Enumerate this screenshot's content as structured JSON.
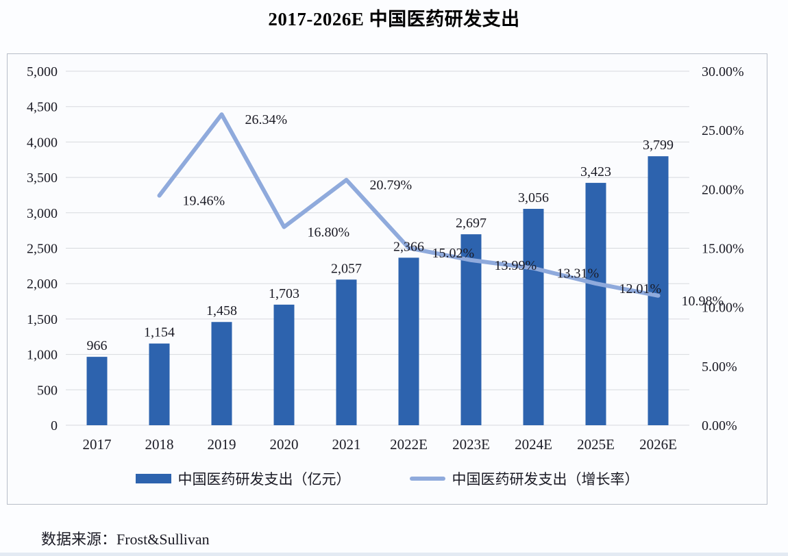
{
  "title": "2017-2026E 中国医药研发支出",
  "source": "数据来源：Frost&Sullivan",
  "legend": {
    "bar_label": "中国医药研发支出（亿元）",
    "line_label": "中国医药研发支出（增长率）"
  },
  "colors": {
    "bar": "#2d63ae",
    "line": "#8faadc",
    "grid": "#d7d9dd",
    "text": "#1a1a24",
    "frame": "#b7bdc8"
  },
  "chart_data": {
    "type": "bar",
    "subtype": "bar+line combo, dual axis",
    "title": "2017-2026E 中国医药研发支出",
    "categories": [
      "2017",
      "2018",
      "2019",
      "2020",
      "2021",
      "2022E",
      "2023E",
      "2024E",
      "2025E",
      "2026E"
    ],
    "series": [
      {
        "name": "中国医药研发支出（亿元）",
        "type": "bar",
        "axis": "left",
        "values": [
          966,
          1154,
          1458,
          1703,
          2057,
          2366,
          2697,
          3056,
          3423,
          3799
        ],
        "labels": [
          "966",
          "1,154",
          "1,458",
          "1,703",
          "2,057",
          "2,366",
          "2,697",
          "3,056",
          "3,423",
          "3,799"
        ]
      },
      {
        "name": "中国医药研发支出（增长率）",
        "type": "line",
        "axis": "right",
        "values": [
          null,
          19.46,
          26.34,
          16.8,
          20.79,
          15.02,
          13.99,
          13.31,
          12.01,
          10.98
        ],
        "labels": [
          null,
          "19.46%",
          "26.34%",
          "16.80%",
          "20.79%",
          "15.02%",
          "13.99%",
          "13.31%",
          "12.01%",
          "10.98%"
        ]
      }
    ],
    "left_axis": {
      "min": 0,
      "max": 5000,
      "step": 500,
      "ticks": [
        "5,000",
        "4,500",
        "4,000",
        "3,500",
        "3,000",
        "2,500",
        "2,000",
        "1,500",
        "1,000",
        "500",
        "0"
      ]
    },
    "right_axis": {
      "min": 0,
      "max": 30,
      "step": 5,
      "ticks": [
        "30.00%",
        "25.00%",
        "20.00%",
        "15.00%",
        "10.00%",
        "5.00%",
        "0.00%"
      ]
    },
    "grid": true,
    "legend_position": "bottom",
    "data_source": "Frost&Sullivan"
  }
}
